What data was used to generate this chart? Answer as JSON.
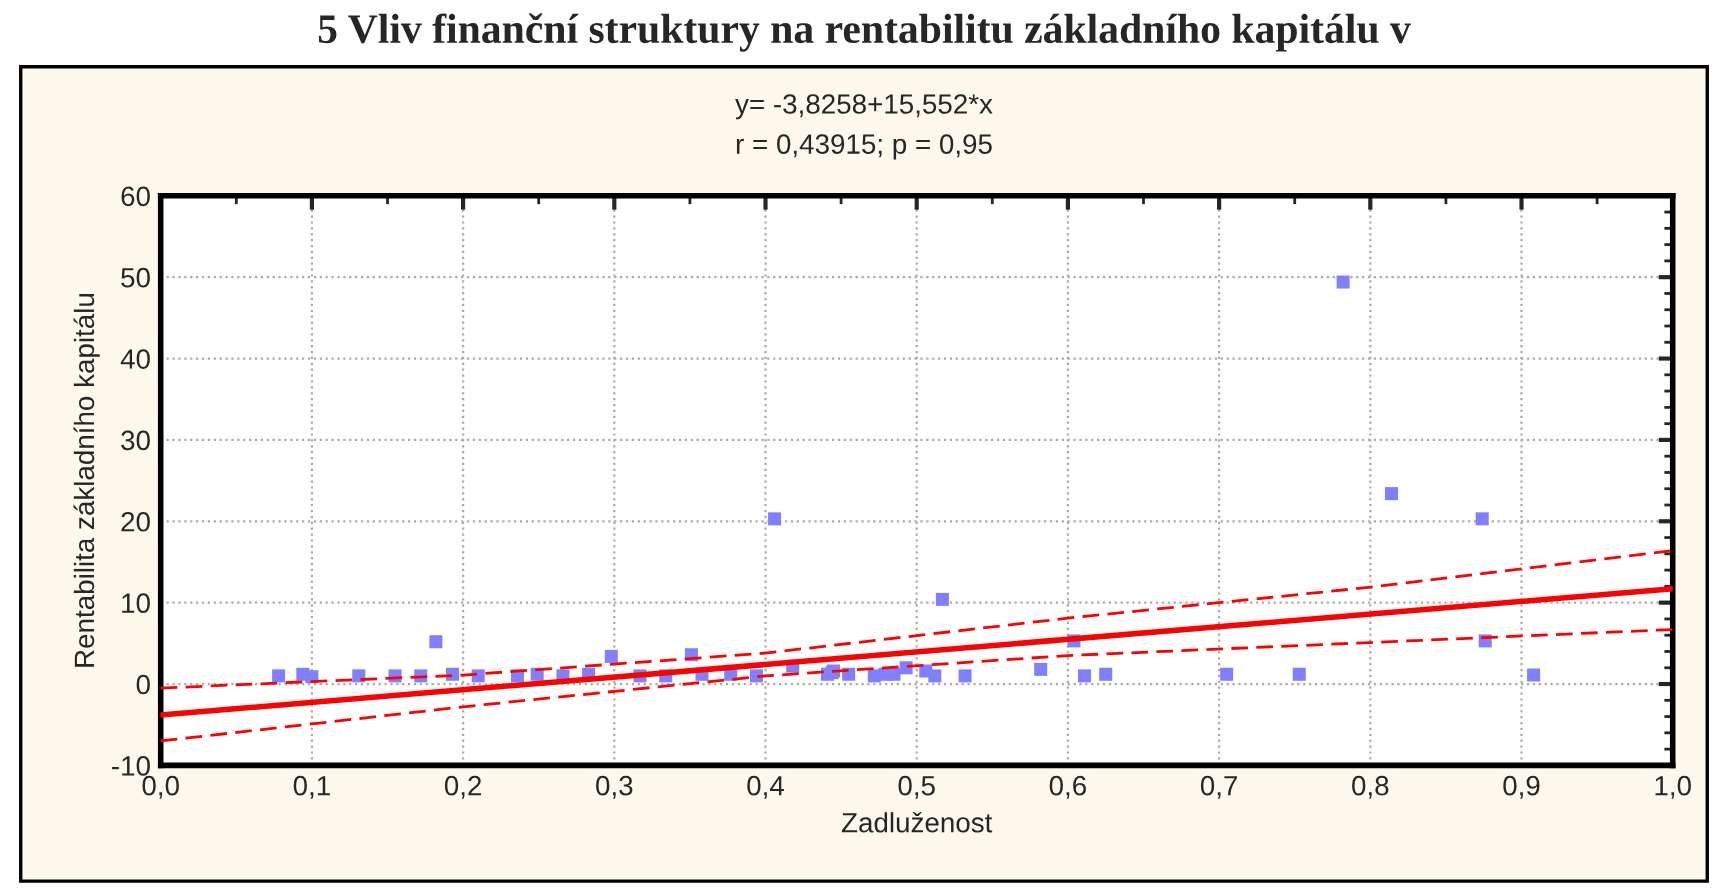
{
  "chart_data": {
    "type": "scatter",
    "title": "5 Vliv finanční struktury na rentabilitu základního kapitálu v",
    "annotations": [
      "y= -3,8258+15,552*x",
      "r = 0,43915; p = 0,95"
    ],
    "xlabel": "Zadluženost",
    "ylabel": "Rentabilita základního kapitálu",
    "xlim": [
      0,
      1
    ],
    "ylim": [
      -10,
      60
    ],
    "xticks": [
      {
        "value": 0,
        "label": "0,0"
      },
      {
        "value": 0.1,
        "label": "0,1"
      },
      {
        "value": 0.2,
        "label": "0,2"
      },
      {
        "value": 0.3,
        "label": "0,3"
      },
      {
        "value": 0.4,
        "label": "0,4"
      },
      {
        "value": 0.5,
        "label": "0,5"
      },
      {
        "value": 0.6,
        "label": "0,6"
      },
      {
        "value": 0.7,
        "label": "0,7"
      },
      {
        "value": 0.8,
        "label": "0,8"
      },
      {
        "value": 0.9,
        "label": "0,9"
      },
      {
        "value": 1,
        "label": "1,0"
      }
    ],
    "yticks": [
      -10,
      0,
      10,
      20,
      30,
      40,
      50,
      60
    ],
    "grid": true,
    "legend": false,
    "series": [
      {
        "marker": "square",
        "color": "#8080ff",
        "x": [
          0.078,
          0.094,
          0.1,
          0.131,
          0.155,
          0.172,
          0.182,
          0.193,
          0.21,
          0.236,
          0.249,
          0.266,
          0.283,
          0.298,
          0.317,
          0.334,
          0.351,
          0.358,
          0.377,
          0.394,
          0.406,
          0.418,
          0.441,
          0.444,
          0.445,
          0.455,
          0.472,
          0.479,
          0.485,
          0.493,
          0.506,
          0.512,
          0.517,
          0.532,
          0.582,
          0.604,
          0.611,
          0.625,
          0.705,
          0.753,
          0.782,
          0.814,
          0.874,
          0.876,
          0.908
        ],
        "values": [
          1.0,
          1.2,
          0.9,
          1.0,
          1.0,
          1.0,
          5.2,
          1.2,
          1.0,
          1.0,
          1.2,
          1.0,
          1.2,
          3.4,
          1.0,
          1.0,
          3.6,
          1.2,
          1.2,
          1.0,
          20.3,
          2.2,
          1.2,
          1.4,
          1.6,
          1.2,
          1.0,
          1.2,
          1.2,
          2.0,
          1.6,
          1.0,
          10.4,
          1.0,
          1.8,
          5.3,
          1.0,
          1.2,
          1.2,
          1.2,
          49.4,
          23.4,
          20.3,
          5.3,
          1.1
        ]
      },
      {
        "type": "line",
        "line_style": "solid",
        "color": "#ff0000",
        "x": [
          0,
          1
        ],
        "values": [
          -3.8,
          11.7
        ]
      },
      {
        "type": "line",
        "line_style": "dashed",
        "color": "#ff0000",
        "x": [
          0,
          0.2,
          0.4,
          0.6,
          0.8,
          1.0
        ],
        "values": [
          -0.5,
          1.1,
          3.8,
          8.1,
          11.9,
          16.4
        ]
      },
      {
        "type": "line",
        "line_style": "dashed",
        "color": "#ff0000",
        "x": [
          0,
          0.2,
          0.4,
          0.6,
          0.8,
          1.0
        ],
        "values": [
          -7.0,
          -2.8,
          1.0,
          3.5,
          5.1,
          6.7
        ]
      }
    ]
  }
}
